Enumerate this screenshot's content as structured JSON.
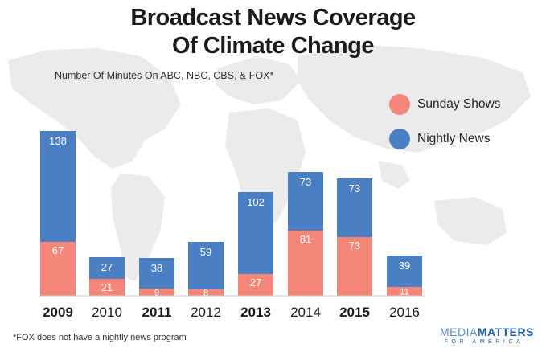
{
  "title_line1": "Broadcast News Coverage",
  "title_line2": "Of Climate Change",
  "subtitle": "Number Of Minutes On ABC, NBC, CBS, & FOX*",
  "footnote": "*FOX does not have a nightly news program",
  "logo": {
    "part1": "MEDIA",
    "part2": "MATTERS",
    "sub": "FOR AMERICA"
  },
  "colors": {
    "sunday": "#f4877a",
    "nightly": "#4a7fc4",
    "map": "#e8e8e8"
  },
  "chart_data": {
    "type": "bar",
    "stacked": true,
    "categories": [
      "2009",
      "2010",
      "2011",
      "2012",
      "2013",
      "2014",
      "2015",
      "2016"
    ],
    "bold_categories": [
      "2009",
      "2011",
      "2013",
      "2015"
    ],
    "series": [
      {
        "name": "Sunday Shows",
        "values": [
          67,
          21,
          9,
          8,
          27,
          81,
          73,
          11
        ]
      },
      {
        "name": "Nightly News",
        "values": [
          138,
          27,
          38,
          59,
          102,
          73,
          73,
          39
        ]
      }
    ],
    "legend_position": "top-right",
    "grid": false
  }
}
